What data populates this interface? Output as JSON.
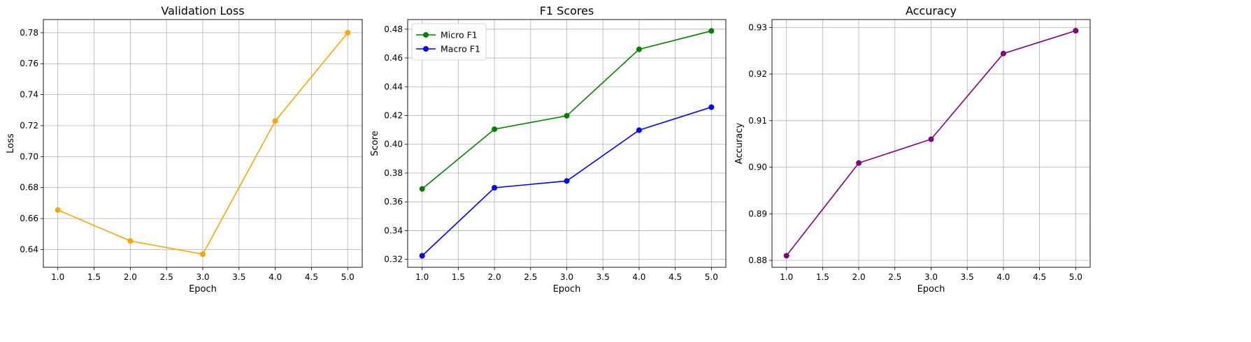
{
  "chart_data": [
    {
      "type": "line",
      "title": "Validation Loss",
      "xlabel": "Epoch",
      "ylabel": "Loss",
      "xlim": [
        0.8,
        5.2
      ],
      "ylim": [
        0.6285,
        0.7885
      ],
      "xticks": [
        1.0,
        1.5,
        2.0,
        2.5,
        3.0,
        3.5,
        4.0,
        4.5,
        5.0
      ],
      "xtick_labels": [
        "1.0",
        "1.5",
        "2.0",
        "2.5",
        "3.0",
        "3.5",
        "4.0",
        "4.5",
        "5.0"
      ],
      "yticks": [
        0.64,
        0.66,
        0.68,
        0.7,
        0.72,
        0.74,
        0.76,
        0.78
      ],
      "ytick_labels": [
        "0.64",
        "0.66",
        "0.68",
        "0.70",
        "0.72",
        "0.74",
        "0.76",
        "0.78"
      ],
      "grid": true,
      "legend": null,
      "x": [
        1,
        2,
        3,
        4,
        5
      ],
      "series": [
        {
          "color": "#ffa500",
          "values": [
            0.6655,
            0.6455,
            0.637,
            0.723,
            0.78
          ]
        }
      ]
    },
    {
      "type": "line",
      "title": "F1 Scores",
      "xlabel": "Epoch",
      "ylabel": "Score",
      "xlim": [
        0.8,
        5.2
      ],
      "ylim": [
        0.3145,
        0.4867
      ],
      "xticks": [
        1.0,
        1.5,
        2.0,
        2.5,
        3.0,
        3.5,
        4.0,
        4.5,
        5.0
      ],
      "xtick_labels": [
        "1.0",
        "1.5",
        "2.0",
        "2.5",
        "3.0",
        "3.5",
        "4.0",
        "4.5",
        "5.0"
      ],
      "yticks": [
        0.32,
        0.34,
        0.36,
        0.38,
        0.4,
        0.42,
        0.44,
        0.46,
        0.48
      ],
      "ytick_labels": [
        "0.32",
        "0.34",
        "0.36",
        "0.38",
        "0.40",
        "0.42",
        "0.44",
        "0.46",
        "0.48"
      ],
      "grid": true,
      "legend": "top-left",
      "x": [
        1,
        2,
        3,
        4,
        5
      ],
      "series": [
        {
          "name": "Micro F1",
          "color": "#008000",
          "values": [
            0.369,
            0.4105,
            0.4198,
            0.466,
            0.4788
          ]
        },
        {
          "name": "Macro F1",
          "color": "#0000ff",
          "values": [
            0.3225,
            0.3698,
            0.3745,
            0.4098,
            0.4258
          ]
        }
      ]
    },
    {
      "type": "line",
      "title": "Accuracy",
      "xlabel": "Epoch",
      "ylabel": "Accuracy",
      "xlim": [
        0.8,
        5.2
      ],
      "ylim": [
        0.8785,
        0.9317
      ],
      "xticks": [
        1.0,
        1.5,
        2.0,
        2.5,
        3.0,
        3.5,
        4.0,
        4.5,
        5.0
      ],
      "xtick_labels": [
        "1.0",
        "1.5",
        "2.0",
        "2.5",
        "3.0",
        "3.5",
        "4.0",
        "4.5",
        "5.0"
      ],
      "yticks": [
        0.88,
        0.89,
        0.9,
        0.91,
        0.92,
        0.93
      ],
      "ytick_labels": [
        "0.88",
        "0.89",
        "0.90",
        "0.91",
        "0.92",
        "0.93"
      ],
      "grid": true,
      "legend": null,
      "x": [
        1,
        2,
        3,
        4,
        5
      ],
      "series": [
        {
          "color": "#800080",
          "values": [
            0.881,
            0.9009,
            0.906,
            0.9244,
            0.9293
          ]
        }
      ]
    }
  ]
}
